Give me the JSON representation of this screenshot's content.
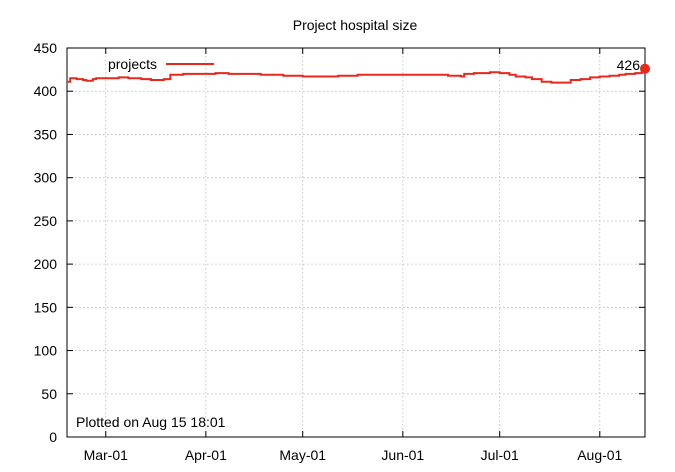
{
  "chart_data": {
    "type": "line",
    "title": "Project hospital size",
    "xlabel": "",
    "ylabel": "",
    "x_tick_labels": [
      "Mar-01",
      "Apr-01",
      "May-01",
      "Jun-01",
      "Jul-01",
      "Aug-01"
    ],
    "x_tick_dates": [
      "2023-03-01",
      "2023-04-01",
      "2023-05-01",
      "2023-06-01",
      "2023-07-01",
      "2023-08-01"
    ],
    "xlim": [
      "2023-02-17",
      "2023-08-15"
    ],
    "y_ticks": [
      0,
      50,
      100,
      150,
      200,
      250,
      300,
      350,
      400,
      450
    ],
    "ylim": [
      0,
      450
    ],
    "grid": true,
    "legend_position": "top-left",
    "series": [
      {
        "name": "projects",
        "color": "#e8281c",
        "x": [
          "2023-02-17",
          "2023-02-18",
          "2023-02-20",
          "2023-02-22",
          "2023-02-23",
          "2023-02-25",
          "2023-02-26",
          "2023-03-01",
          "2023-03-05",
          "2023-03-08",
          "2023-03-12",
          "2023-03-15",
          "2023-03-19",
          "2023-03-21",
          "2023-03-25",
          "2023-03-28",
          "2023-04-01",
          "2023-04-04",
          "2023-04-08",
          "2023-04-12",
          "2023-04-18",
          "2023-04-25",
          "2023-05-01",
          "2023-05-06",
          "2023-05-12",
          "2023-05-18",
          "2023-05-25",
          "2023-06-01",
          "2023-06-08",
          "2023-06-15",
          "2023-06-19",
          "2023-06-20",
          "2023-06-23",
          "2023-06-25",
          "2023-06-28",
          "2023-07-01",
          "2023-07-04",
          "2023-07-06",
          "2023-07-09",
          "2023-07-11",
          "2023-07-14",
          "2023-07-17",
          "2023-07-20",
          "2023-07-23",
          "2023-07-26",
          "2023-07-29",
          "2023-08-01",
          "2023-08-04",
          "2023-08-07",
          "2023-08-09",
          "2023-08-12",
          "2023-08-14",
          "2023-08-15"
        ],
        "values": [
          411,
          415,
          414,
          413,
          412,
          414,
          415,
          415,
          416,
          415,
          414,
          413,
          414,
          419,
          420,
          420,
          420,
          421,
          420,
          420,
          419,
          418,
          417,
          417,
          418,
          419,
          419,
          419,
          419,
          418,
          417,
          420,
          421,
          421,
          422,
          421,
          419,
          417,
          416,
          414,
          411,
          410,
          410,
          413,
          414,
          416,
          417,
          418,
          419,
          420,
          421,
          422,
          426
        ]
      }
    ],
    "annotations": {
      "last_value": "426",
      "footnote": "Plotted on Aug 15 18:01"
    }
  }
}
